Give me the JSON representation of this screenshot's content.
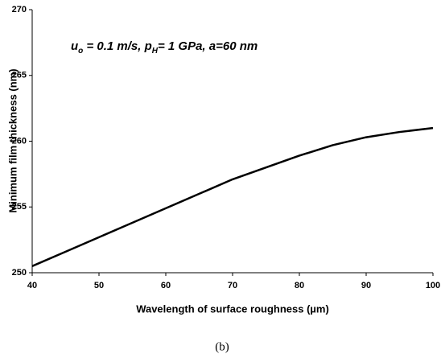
{
  "chart_data": {
    "type": "line",
    "x_label": "Wavelength of surface roughness (µm)",
    "y_label": "Minimum film thickness (nm)",
    "annotation": [
      "u",
      "o",
      " = 0.1 m/s, p",
      "H",
      "= 1 GPa, a=60 nm"
    ],
    "caption": "(b)",
    "x": [
      40,
      45,
      50,
      55,
      60,
      65,
      70,
      75,
      80,
      85,
      90,
      95,
      100
    ],
    "series": [
      {
        "color": "#000000",
        "values": [
          250.5,
          251.6,
          252.7,
          253.8,
          254.9,
          256.0,
          257.1,
          258.0,
          258.9,
          259.7,
          260.3,
          260.7,
          261.0
        ]
      }
    ],
    "xlim": [
      40,
      100
    ],
    "xticks": [
      40,
      50,
      60,
      70,
      80,
      90,
      100
    ],
    "ylim": [
      250,
      270
    ],
    "yticks": [
      250,
      255,
      260,
      265,
      270
    ],
    "grid": false
  }
}
